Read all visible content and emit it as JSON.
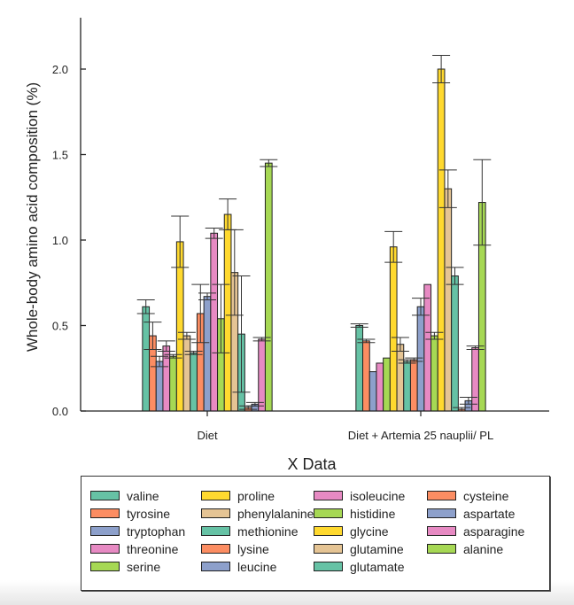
{
  "chart_data": {
    "type": "bar",
    "title": "",
    "xlabel": "X Data",
    "ylabel": "Whole-body amino acid composition (%)",
    "ylim": [
      0,
      2.3
    ],
    "yticks": [
      "0.0",
      "0.5",
      "1.0",
      "1.5",
      "2.0"
    ],
    "ytick_values": [
      0,
      0.5,
      1.0,
      1.5,
      2.0
    ],
    "grid": false,
    "legend_position": "bottom",
    "categories": [
      "Diet",
      "Diet + Artemia 25 nauplii/ PL"
    ],
    "series": [
      {
        "name": "valine",
        "color": "#66c2a5",
        "values": [
          0.61,
          0.5
        ],
        "errors": [
          0.04,
          0.01
        ]
      },
      {
        "name": "tyrosine",
        "color": "#fc8d62",
        "values": [
          0.44,
          0.41
        ],
        "errors": [
          0.08,
          0.01
        ]
      },
      {
        "name": "tryptophan",
        "color": "#8da0cb",
        "values": [
          0.29,
          0.23
        ],
        "errors": [
          0.03,
          0.0
        ]
      },
      {
        "name": "threonine",
        "color": "#e78ac3",
        "values": [
          0.38,
          0.28
        ],
        "errors": [
          0.03,
          0.0
        ]
      },
      {
        "name": "serine",
        "color": "#a6d854",
        "values": [
          0.32,
          0.31
        ],
        "errors": [
          0.01,
          0.0
        ]
      },
      {
        "name": "proline",
        "color": "#ffd92f",
        "values": [
          0.99,
          0.96
        ],
        "errors": [
          0.15,
          0.09
        ]
      },
      {
        "name": "phenylalanine",
        "color": "#e5c494",
        "values": [
          0.44,
          0.39
        ],
        "errors": [
          0.02,
          0.04
        ]
      },
      {
        "name": "methionine",
        "color": "#66c2a5",
        "values": [
          0.34,
          0.29
        ],
        "errors": [
          0.01,
          0.01
        ]
      },
      {
        "name": "lysine",
        "color": "#fc8d62",
        "values": [
          0.57,
          0.3
        ],
        "errors": [
          0.17,
          0.01
        ]
      },
      {
        "name": "leucine",
        "color": "#8da0cb",
        "values": [
          0.67,
          0.61
        ],
        "errors": [
          0.02,
          0.05
        ]
      },
      {
        "name": "isoleucine",
        "color": "#e78ac3",
        "values": [
          1.04,
          0.74
        ],
        "errors": [
          0.03,
          0.0
        ]
      },
      {
        "name": "histidine",
        "color": "#a6d854",
        "values": [
          0.54,
          0.44
        ],
        "errors": [
          0.2,
          0.02
        ]
      },
      {
        "name": "glycine",
        "color": "#ffd92f",
        "values": [
          1.15,
          2.0
        ],
        "errors": [
          0.09,
          0.08
        ]
      },
      {
        "name": "glutamine",
        "color": "#e5c494",
        "values": [
          0.81,
          1.3
        ],
        "errors": [
          0.25,
          0.11
        ]
      },
      {
        "name": "glutamate",
        "color": "#66c2a5",
        "values": [
          0.45,
          0.79
        ],
        "errors": [
          0.34,
          0.05
        ]
      },
      {
        "name": "cysteine",
        "color": "#fc8d62",
        "values": [
          0.02,
          0.01
        ],
        "errors": [
          0.01,
          0.01
        ]
      },
      {
        "name": "aspartate",
        "color": "#8da0cb",
        "values": [
          0.04,
          0.06
        ],
        "errors": [
          0.01,
          0.02
        ]
      },
      {
        "name": "asparagine",
        "color": "#e78ac3",
        "values": [
          0.42,
          0.37
        ],
        "errors": [
          0.01,
          0.01
        ]
      },
      {
        "name": "alanine",
        "color": "#a6d854",
        "values": [
          1.45,
          1.22
        ],
        "errors": [
          0.02,
          0.25
        ]
      }
    ]
  }
}
